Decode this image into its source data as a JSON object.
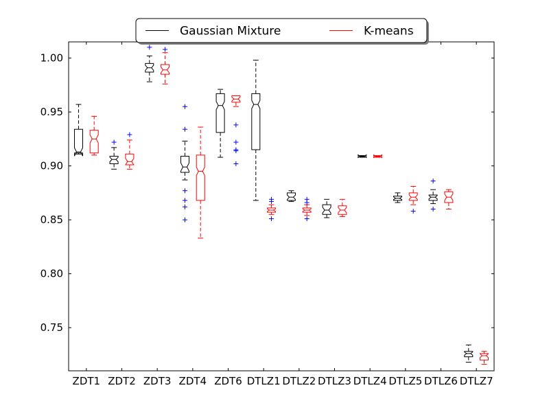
{
  "chart_data": {
    "type": "boxplot",
    "notched": true,
    "categories": [
      "ZDT1",
      "ZDT2",
      "ZDT3",
      "ZDT4",
      "ZDT6",
      "DTLZ1",
      "DTLZ2",
      "DTLZ3",
      "DTLZ4",
      "DTLZ5",
      "DTLZ6",
      "DTLZ7"
    ],
    "ylim": [
      0.71,
      1.015
    ],
    "yticks": [
      0.75,
      0.8,
      0.85,
      0.9,
      0.95,
      1.0
    ],
    "ytick_labels": [
      "0.75",
      "0.80",
      "0.85",
      "0.90",
      "0.95",
      "1.00"
    ],
    "grid": false,
    "legend_position": "top-center",
    "outlier_color": "#0000ff",
    "series": [
      {
        "name": "Gaussian Mixture",
        "color": "#000000",
        "boxes": [
          {
            "whislo": 0.911,
            "q1": 0.912,
            "med": 0.913,
            "q3": 0.934,
            "whishi": 0.957,
            "fliers": []
          },
          {
            "whislo": 0.897,
            "q1": 0.902,
            "med": 0.906,
            "q3": 0.909,
            "whishi": 0.917,
            "fliers": [
              0.922
            ]
          },
          {
            "whislo": 0.978,
            "q1": 0.987,
            "med": 0.991,
            "q3": 0.995,
            "whishi": 1.002,
            "fliers": [
              1.01
            ]
          },
          {
            "whislo": 0.887,
            "q1": 0.894,
            "med": 0.899,
            "q3": 0.909,
            "whishi": 0.923,
            "fliers": [
              0.955,
              0.934,
              0.877,
              0.868,
              0.862,
              0.85
            ]
          },
          {
            "whislo": 0.908,
            "q1": 0.931,
            "med": 0.956,
            "q3": 0.967,
            "whishi": 0.971,
            "fliers": []
          },
          {
            "whislo": 0.868,
            "q1": 0.915,
            "med": 0.957,
            "q3": 0.967,
            "whishi": 0.998,
            "fliers": []
          },
          {
            "whislo": 0.867,
            "q1": 0.868,
            "med": 0.871,
            "q3": 0.875,
            "whishi": 0.877,
            "fliers": []
          },
          {
            "whislo": 0.852,
            "q1": 0.855,
            "med": 0.859,
            "q3": 0.864,
            "whishi": 0.869,
            "fliers": []
          },
          {
            "whislo": 0.908,
            "q1": 0.9085,
            "med": 0.909,
            "q3": 0.9095,
            "whishi": 0.9095,
            "fliers": []
          },
          {
            "whislo": 0.866,
            "q1": 0.868,
            "med": 0.87,
            "q3": 0.872,
            "whishi": 0.875,
            "fliers": []
          },
          {
            "whislo": 0.865,
            "q1": 0.868,
            "med": 0.871,
            "q3": 0.873,
            "whishi": 0.878,
            "fliers": [
              0.886,
              0.86
            ]
          },
          {
            "whislo": 0.718,
            "q1": 0.723,
            "med": 0.726,
            "q3": 0.728,
            "whishi": 0.734,
            "fliers": []
          }
        ]
      },
      {
        "name": "K-means",
        "color": "#ff0000",
        "boxes": [
          {
            "whislo": 0.91,
            "q1": 0.912,
            "med": 0.925,
            "q3": 0.933,
            "whishi": 0.946,
            "fliers": []
          },
          {
            "whislo": 0.897,
            "q1": 0.901,
            "med": 0.904,
            "q3": 0.911,
            "whishi": 0.924,
            "fliers": [
              0.929
            ]
          },
          {
            "whislo": 0.976,
            "q1": 0.985,
            "med": 0.989,
            "q3": 0.994,
            "whishi": 1.005,
            "fliers": [
              1.008
            ]
          },
          {
            "whislo": 0.833,
            "q1": 0.868,
            "med": 0.895,
            "q3": 0.91,
            "whishi": 0.936,
            "fliers": []
          },
          {
            "whislo": 0.955,
            "q1": 0.959,
            "med": 0.962,
            "q3": 0.965,
            "whishi": 0.965,
            "fliers": [
              0.938,
              0.922,
              0.915,
              0.914,
              0.902
            ]
          },
          {
            "whislo": 0.855,
            "q1": 0.857,
            "med": 0.859,
            "q3": 0.861,
            "whishi": 0.864,
            "fliers": [
              0.869,
              0.867,
              0.851
            ]
          },
          {
            "whislo": 0.854,
            "q1": 0.857,
            "med": 0.859,
            "q3": 0.861,
            "whishi": 0.864,
            "fliers": [
              0.869,
              0.866,
              0.851
            ]
          },
          {
            "whislo": 0.853,
            "q1": 0.855,
            "med": 0.859,
            "q3": 0.863,
            "whishi": 0.869,
            "fliers": []
          },
          {
            "whislo": 0.908,
            "q1": 0.9085,
            "med": 0.909,
            "q3": 0.9095,
            "whishi": 0.9095,
            "fliers": []
          },
          {
            "whislo": 0.864,
            "q1": 0.868,
            "med": 0.871,
            "q3": 0.875,
            "whishi": 0.881,
            "fliers": [
              0.858
            ]
          },
          {
            "whislo": 0.86,
            "q1": 0.866,
            "med": 0.871,
            "q3": 0.876,
            "whishi": 0.878,
            "fliers": []
          },
          {
            "whislo": 0.716,
            "q1": 0.72,
            "med": 0.724,
            "q3": 0.726,
            "whishi": 0.728,
            "fliers": []
          }
        ]
      }
    ]
  }
}
